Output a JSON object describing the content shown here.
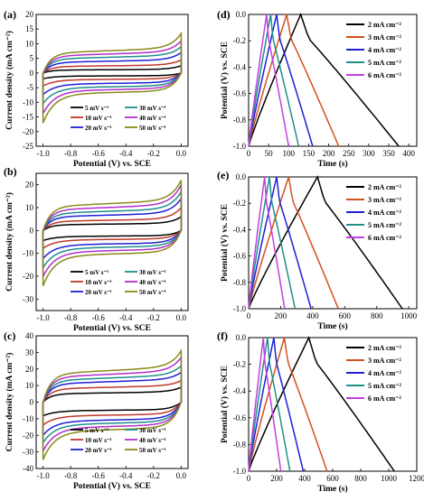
{
  "figure": {
    "panels": [
      "(a)",
      "(b)",
      "(c)",
      "(d)",
      "(e)",
      "(f)"
    ]
  },
  "colors": {
    "5mV": "#000000",
    "10mV": "#c0392b",
    "20mV": "#1f1fd6",
    "30mV": "#1f8f8a",
    "40mV": "#b030c8",
    "50mV": "#8a8a1a",
    "2mA": "#000000",
    "3mA": "#d4501e",
    "4mA": "#1f1fd6",
    "5mA": "#1f8f8a",
    "6mA": "#c040e0"
  },
  "chart_data": [
    {
      "panel": "(a)",
      "type": "line",
      "xlabel": "Potential (V) vs. SCE",
      "ylabel": "Current density (mA cm⁻²)",
      "xlim": [
        -1.05,
        0.05
      ],
      "ylim": [
        -25,
        20
      ],
      "xticks": [
        "-1.0",
        "-0.8",
        "-0.6",
        "-0.4",
        "-0.2",
        "0.0"
      ],
      "yticks": [
        "-25",
        "-20",
        "-15",
        "-10",
        "-5",
        "0",
        "5",
        "10",
        "15",
        "20"
      ],
      "legend": [
        "5 mV s⁻¹",
        "10 mV s⁻¹",
        "20 mV s⁻¹",
        "30 mV s⁻¹",
        "40 mV s⁻¹",
        "50 mV s⁻¹"
      ],
      "legend_placement": "bottom",
      "series": [
        {
          "name": "5 mV s⁻¹",
          "color": "5mV",
          "amp": 1.0,
          "tail_top": 2.5,
          "tail_bot": -1.5
        },
        {
          "name": "10 mV s⁻¹",
          "color": "10mV",
          "amp": 2.2,
          "tail_top": 4.5,
          "tail_bot": -3.5
        },
        {
          "name": "20 mV s⁻¹",
          "color": "20mV",
          "amp": 3.6,
          "tail_top": 7.0,
          "tail_bot": -6.0
        },
        {
          "name": "30 mV s⁻¹",
          "color": "30mV",
          "amp": 4.8,
          "tail_top": 9.0,
          "tail_bot": -9.0
        },
        {
          "name": "40 mV s⁻¹",
          "color": "40mV",
          "amp": 5.8,
          "tail_top": 11.0,
          "tail_bot": -13.0
        },
        {
          "name": "50 mV s⁻¹",
          "color": "50mV",
          "amp": 6.8,
          "tail_top": 13.5,
          "tail_bot": -16.5
        }
      ]
    },
    {
      "panel": "(b)",
      "type": "line",
      "xlabel": "Potential (V) vs. SCE",
      "ylabel": "Current density (mA cm⁻²)",
      "xlim": [
        -1.05,
        0.05
      ],
      "ylim": [
        -35,
        25
      ],
      "xticks": [
        "-1.0",
        "-0.8",
        "-0.6",
        "-0.4",
        "-0.2",
        "0.0"
      ],
      "yticks": [
        "-30",
        "-20",
        "-10",
        "0",
        "10",
        "20"
      ],
      "legend": [
        "5 mV s⁻¹",
        "10 mV s⁻¹",
        "20 mV s⁻¹",
        "30 mV s⁻¹",
        "40 mV s⁻¹",
        "50 mV s⁻¹"
      ],
      "legend_placement": "bottom",
      "series": [
        {
          "name": "5 mV s⁻¹",
          "color": "5mV",
          "amp": 2.5,
          "tail_top": 6,
          "tail_bot": -3
        },
        {
          "name": "10 mV s⁻¹",
          "color": "10mV",
          "amp": 4.0,
          "tail_top": 10,
          "tail_bot": -6
        },
        {
          "name": "20 mV s⁻¹",
          "color": "20mV",
          "amp": 6.0,
          "tail_top": 14,
          "tail_bot": -10
        },
        {
          "name": "30 mV s⁻¹",
          "color": "30mV",
          "amp": 7.5,
          "tail_top": 17,
          "tail_bot": -14
        },
        {
          "name": "40 mV s⁻¹",
          "color": "40mV",
          "amp": 9.0,
          "tail_top": 20,
          "tail_bot": -18
        },
        {
          "name": "50 mV s⁻¹",
          "color": "50mV",
          "amp": 10.5,
          "tail_top": 22,
          "tail_bot": -22
        }
      ]
    },
    {
      "panel": "(c)",
      "type": "line",
      "xlabel": "Potential (V) vs. SCE",
      "ylabel": "Current density (mA cm⁻²)",
      "xlim": [
        -1.05,
        0.05
      ],
      "ylim": [
        -40,
        40
      ],
      "xticks": [
        "-1.0",
        "-0.8",
        "-0.6",
        "-0.4",
        "-0.2",
        "0.0"
      ],
      "yticks": [
        "-40",
        "-30",
        "-20",
        "-10",
        "0",
        "10",
        "20",
        "30",
        "40"
      ],
      "legend": [
        "5 mV s⁻¹",
        "10 mV s⁻¹",
        "20 mV s⁻¹",
        "30 mV s⁻¹",
        "40 mV s⁻¹",
        "50 mV s⁻¹"
      ],
      "legend_placement": "bottom",
      "series": [
        {
          "name": "5 mV s⁻¹",
          "color": "5mV",
          "amp": 5,
          "tail_top": 9,
          "tail_bot": -5
        },
        {
          "name": "10 mV s⁻¹",
          "color": "10mV",
          "amp": 8,
          "tail_top": 13,
          "tail_bot": -9
        },
        {
          "name": "20 mV s⁻¹",
          "color": "20mV",
          "amp": 11,
          "tail_top": 18,
          "tail_bot": -14
        },
        {
          "name": "30 mV s⁻¹",
          "color": "30mV",
          "amp": 13,
          "tail_top": 22,
          "tail_bot": -18
        },
        {
          "name": "40 mV s⁻¹",
          "color": "40mV",
          "amp": 15,
          "tail_top": 27,
          "tail_bot": -23
        },
        {
          "name": "50 mV s⁻¹",
          "color": "50mV",
          "amp": 17,
          "tail_top": 31,
          "tail_bot": -28
        }
      ]
    },
    {
      "panel": "(d)",
      "type": "line",
      "xlabel": "Time (s)",
      "ylabel": "Potential (V) vs. SCE",
      "xlim": [
        0,
        420
      ],
      "ylim": [
        -1.0,
        0.0
      ],
      "xticks": [
        "0",
        "50",
        "100",
        "150",
        "200",
        "250",
        "300",
        "350",
        "400"
      ],
      "yticks": [
        "-1.0",
        "-0.8",
        "-0.6",
        "-0.4",
        "-0.2",
        "0.0"
      ],
      "legend": [
        "2 mA cm⁻²",
        "3 mA cm⁻²",
        "4 mA cm⁻²",
        "5 mA cm⁻²",
        "6 mA cm⁻²"
      ],
      "legend_placement": "top-right",
      "series": [
        {
          "name": "2 mA cm⁻²",
          "color": "2mA",
          "t_peak": 130,
          "t_end": 375
        },
        {
          "name": "3 mA cm⁻²",
          "color": "3mA",
          "t_peak": 95,
          "t_end": 225
        },
        {
          "name": "4 mA cm⁻²",
          "color": "4mA",
          "t_peak": 70,
          "t_end": 160
        },
        {
          "name": "5 mA cm⁻²",
          "color": "5mA",
          "t_peak": 55,
          "t_end": 125
        },
        {
          "name": "6 mA cm⁻²",
          "color": "6mA",
          "t_peak": 45,
          "t_end": 100
        }
      ]
    },
    {
      "panel": "(e)",
      "type": "line",
      "xlabel": "Time (s)",
      "ylabel": "Potential (V) vs. SCE",
      "xlim": [
        0,
        1050
      ],
      "ylim": [
        -1.0,
        0.0
      ],
      "xticks": [
        "0",
        "200",
        "400",
        "600",
        "800",
        "1000"
      ],
      "yticks": [
        "-1.0",
        "-0.8",
        "-0.6",
        "-0.4",
        "-0.2",
        "0.0"
      ],
      "legend": [
        "2 mA cm⁻²",
        "3 mA cm⁻²",
        "4 mA cm⁻²",
        "5 mA cm⁻²",
        "6 mA cm⁻²"
      ],
      "legend_placement": "top-right",
      "series": [
        {
          "name": "2 mA cm⁻²",
          "color": "2mA",
          "t_peak": 430,
          "t_end": 960
        },
        {
          "name": "3 mA cm⁻²",
          "color": "3mA",
          "t_peak": 250,
          "t_end": 560
        },
        {
          "name": "4 mA cm⁻²",
          "color": "4mA",
          "t_peak": 175,
          "t_end": 390
        },
        {
          "name": "5 mA cm⁻²",
          "color": "5mA",
          "t_peak": 130,
          "t_end": 290
        },
        {
          "name": "6 mA cm⁻²",
          "color": "6mA",
          "t_peak": 100,
          "t_end": 225
        }
      ]
    },
    {
      "panel": "(f)",
      "type": "line",
      "xlabel": "Time (s)",
      "ylabel": "Potential (V) vs. SCE",
      "xlim": [
        0,
        1200
      ],
      "ylim": [
        -1.0,
        0.0
      ],
      "xticks": [
        "0",
        "200",
        "400",
        "600",
        "800",
        "1000",
        "1200"
      ],
      "yticks": [
        "-1.0",
        "-0.8",
        "-0.6",
        "-0.4",
        "-0.2",
        "0.0"
      ],
      "legend": [
        "2 mA cm⁻²",
        "3 mA cm⁻²",
        "4 mA cm⁻²",
        "5 mA cm⁻²",
        "6 mA cm⁻²"
      ],
      "legend_placement": "top-right",
      "series": [
        {
          "name": "2 mA cm⁻²",
          "color": "2mA",
          "t_peak": 430,
          "t_end": 1040
        },
        {
          "name": "3 mA cm⁻²",
          "color": "3mA",
          "t_peak": 255,
          "t_end": 560
        },
        {
          "name": "4 mA cm⁻²",
          "color": "4mA",
          "t_peak": 180,
          "t_end": 390
        },
        {
          "name": "5 mA cm⁻²",
          "color": "5mA",
          "t_peak": 135,
          "t_end": 295
        },
        {
          "name": "6 mA cm⁻²",
          "color": "6mA",
          "t_peak": 105,
          "t_end": 230
        }
      ]
    }
  ]
}
